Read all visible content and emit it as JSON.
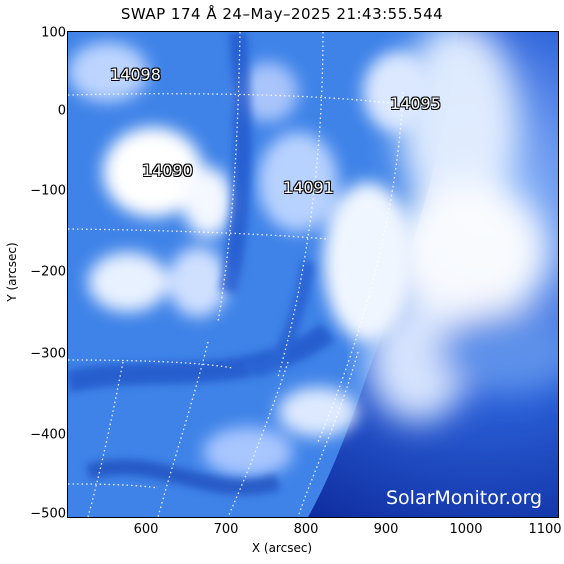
{
  "title": "SWAP 174 Å 24–May–2025 21:43:55.544",
  "axes": {
    "xlabel": "X (arcsec)",
    "ylabel": "Y (arcsec)",
    "xticks": [
      "600",
      "700",
      "800",
      "900",
      "1000",
      "1100"
    ],
    "yticks": [
      "100",
      "0",
      "−100",
      "−200",
      "−300",
      "−400",
      "−500"
    ]
  },
  "regions": [
    "14098",
    "14095",
    "14090",
    "14091"
  ],
  "credit": "SolarMonitor.org",
  "colors": {
    "background": "#0a2fa8",
    "bright": "#ffffff",
    "mid": "#3c7ee6"
  }
}
